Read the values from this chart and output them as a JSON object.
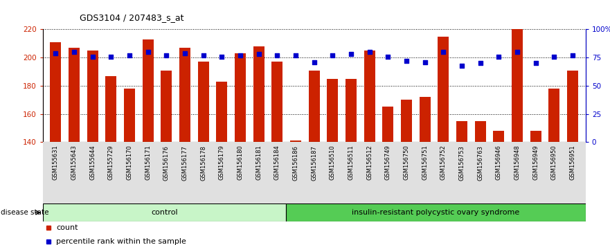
{
  "title": "GDS3104 / 207483_s_at",
  "samples": [
    "GSM155631",
    "GSM155643",
    "GSM155644",
    "GSM155729",
    "GSM156170",
    "GSM156171",
    "GSM156176",
    "GSM156177",
    "GSM156178",
    "GSM156179",
    "GSM156180",
    "GSM156181",
    "GSM156184",
    "GSM156186",
    "GSM156187",
    "GSM156510",
    "GSM156511",
    "GSM156512",
    "GSM156749",
    "GSM156750",
    "GSM156751",
    "GSM156752",
    "GSM156753",
    "GSM156763",
    "GSM156946",
    "GSM156948",
    "GSM156949",
    "GSM156950",
    "GSM156951"
  ],
  "bar_values": [
    211,
    207,
    205,
    187,
    178,
    213,
    191,
    207,
    197,
    183,
    203,
    208,
    197,
    141,
    191,
    185,
    185,
    205,
    165,
    170,
    172,
    215,
    155,
    155,
    148,
    220,
    148,
    178,
    191
  ],
  "dot_values": [
    79,
    80,
    76,
    76,
    77,
    80,
    77,
    79,
    77,
    76,
    77,
    78,
    77,
    77,
    71,
    77,
    78,
    80,
    76,
    72,
    71,
    80,
    68,
    70,
    76,
    80,
    70,
    76,
    77
  ],
  "control_count": 13,
  "disease_label": "insulin-resistant polycystic ovary syndrome",
  "control_label": "control",
  "ylim_left": [
    140,
    220
  ],
  "ylim_right": [
    0,
    100
  ],
  "yticks_left": [
    140,
    160,
    180,
    200,
    220
  ],
  "yticks_right": [
    0,
    25,
    50,
    75,
    100
  ],
  "bar_color": "#cc2200",
  "dot_color": "#0000cc",
  "bg_color": "#ffffff",
  "control_bg": "#c8f5c8",
  "disease_bg": "#55cc55",
  "legend_count_label": "count",
  "legend_pct_label": "percentile rank within the sample"
}
